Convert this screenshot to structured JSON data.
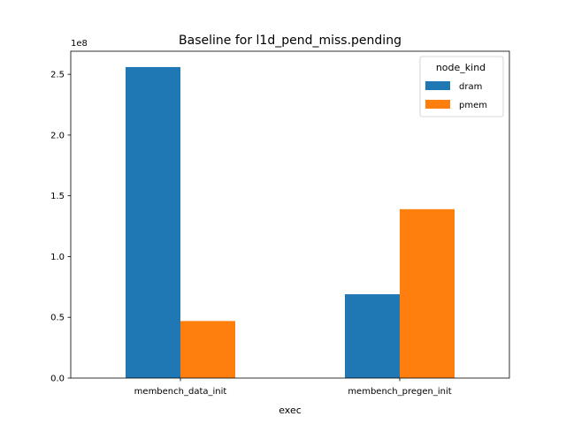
{
  "chart_data": {
    "type": "bar",
    "title": "Baseline for l1d_pend_miss.pending",
    "xlabel": "exec",
    "ylabel": "",
    "y_offset_label": "1e8",
    "categories": [
      "membench_data_init",
      "membench_pregen_init"
    ],
    "series": [
      {
        "name": "dram",
        "values": [
          2.56,
          0.69
        ],
        "color": "#1f77b4"
      },
      {
        "name": "pmem",
        "values": [
          0.47,
          1.39
        ],
        "color": "#ff7f0e"
      }
    ],
    "ylim": [
      0,
      2.69
    ],
    "yticks": [
      0.0,
      0.5,
      1.0,
      1.5,
      2.0,
      2.5
    ],
    "ytick_labels": [
      "0.0",
      "0.5",
      "1.0",
      "1.5",
      "2.0",
      "2.5"
    ],
    "grid": false,
    "legend": {
      "title": "node_kind",
      "placement": "top-right"
    }
  }
}
